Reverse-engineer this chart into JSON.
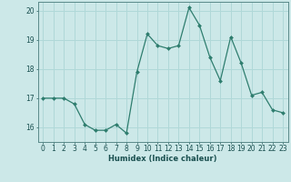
{
  "x": [
    0,
    1,
    2,
    3,
    4,
    5,
    6,
    7,
    8,
    9,
    10,
    11,
    12,
    13,
    14,
    15,
    16,
    17,
    18,
    19,
    20,
    21,
    22,
    23
  ],
  "y": [
    17.0,
    17.0,
    17.0,
    16.8,
    16.1,
    15.9,
    15.9,
    16.1,
    15.8,
    17.9,
    19.2,
    18.8,
    18.7,
    18.8,
    20.1,
    19.5,
    18.4,
    17.6,
    19.1,
    18.2,
    17.1,
    17.2,
    16.6,
    16.5
  ],
  "xlabel": "Humidex (Indice chaleur)",
  "ylim": [
    15.5,
    20.3
  ],
  "xlim": [
    -0.5,
    23.5
  ],
  "yticks": [
    16,
    17,
    18,
    19,
    20
  ],
  "xticks": [
    0,
    1,
    2,
    3,
    4,
    5,
    6,
    7,
    8,
    9,
    10,
    11,
    12,
    13,
    14,
    15,
    16,
    17,
    18,
    19,
    20,
    21,
    22,
    23
  ],
  "line_color": "#2e7d6e",
  "marker_color": "#2e7d6e",
  "bg_color": "#cce8e8",
  "grid_color": "#b0d8d8",
  "axes_color": "#5a8a8a",
  "text_color": "#1a5050",
  "xlabel_fontsize": 6.0,
  "tick_fontsize": 5.5,
  "xlabel_fontweight": "bold"
}
